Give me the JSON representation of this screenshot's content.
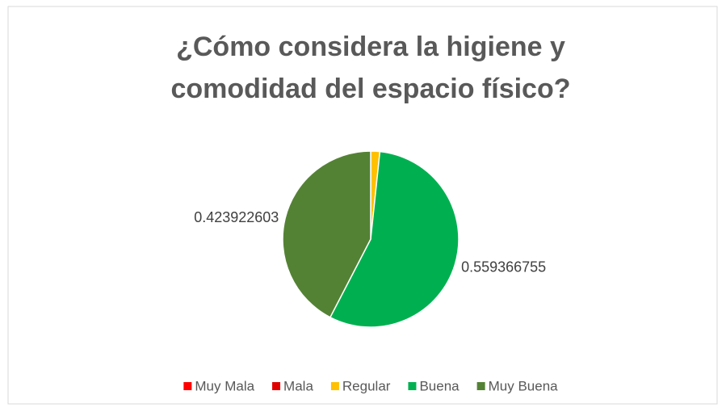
{
  "chart_data": {
    "type": "pie",
    "title": [
      "¿Cómo considera la higiene y",
      "comodidad del espacio físico?"
    ],
    "categories": [
      "Muy Mala",
      "Mala",
      "Regular",
      "Buena",
      "Muy Buena"
    ],
    "values": [
      0,
      0,
      0.016710642,
      0.559366755,
      0.423922603
    ],
    "value_labels": [
      null,
      null,
      null,
      "0.559366755",
      "0.423922603"
    ],
    "colors": [
      "#ff0000",
      "#e00000",
      "#ffc000",
      "#00b050",
      "#548235"
    ],
    "legend": "bottom"
  }
}
